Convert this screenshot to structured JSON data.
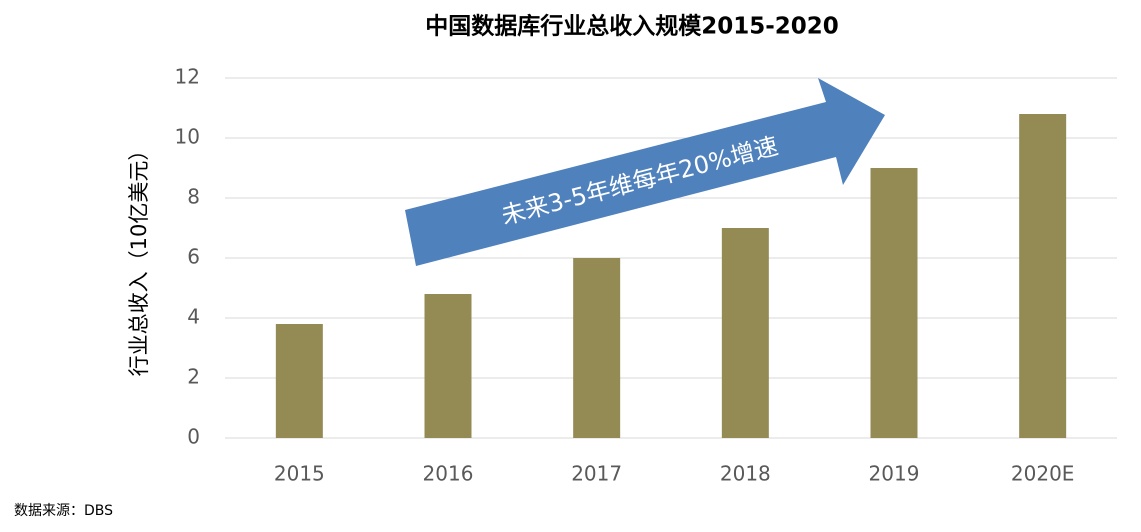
{
  "chart_data": {
    "type": "bar",
    "title": "中国数据库行业总收入规模2015-2020",
    "y_label": "行业总收入（10亿美元）",
    "annotation": "未来3-5年维每年20%增速",
    "source": "数据来源：DBS",
    "categories": [
      "2015",
      "2016",
      "2017",
      "2018",
      "2019",
      "2020E"
    ],
    "values": [
      3.8,
      4.8,
      6.0,
      7.0,
      9.0,
      10.8
    ],
    "color": "#948a54",
    "ylim": [
      0,
      12
    ],
    "yticks": [
      0,
      2,
      4,
      6,
      8,
      10,
      12
    ],
    "grid": true
  }
}
